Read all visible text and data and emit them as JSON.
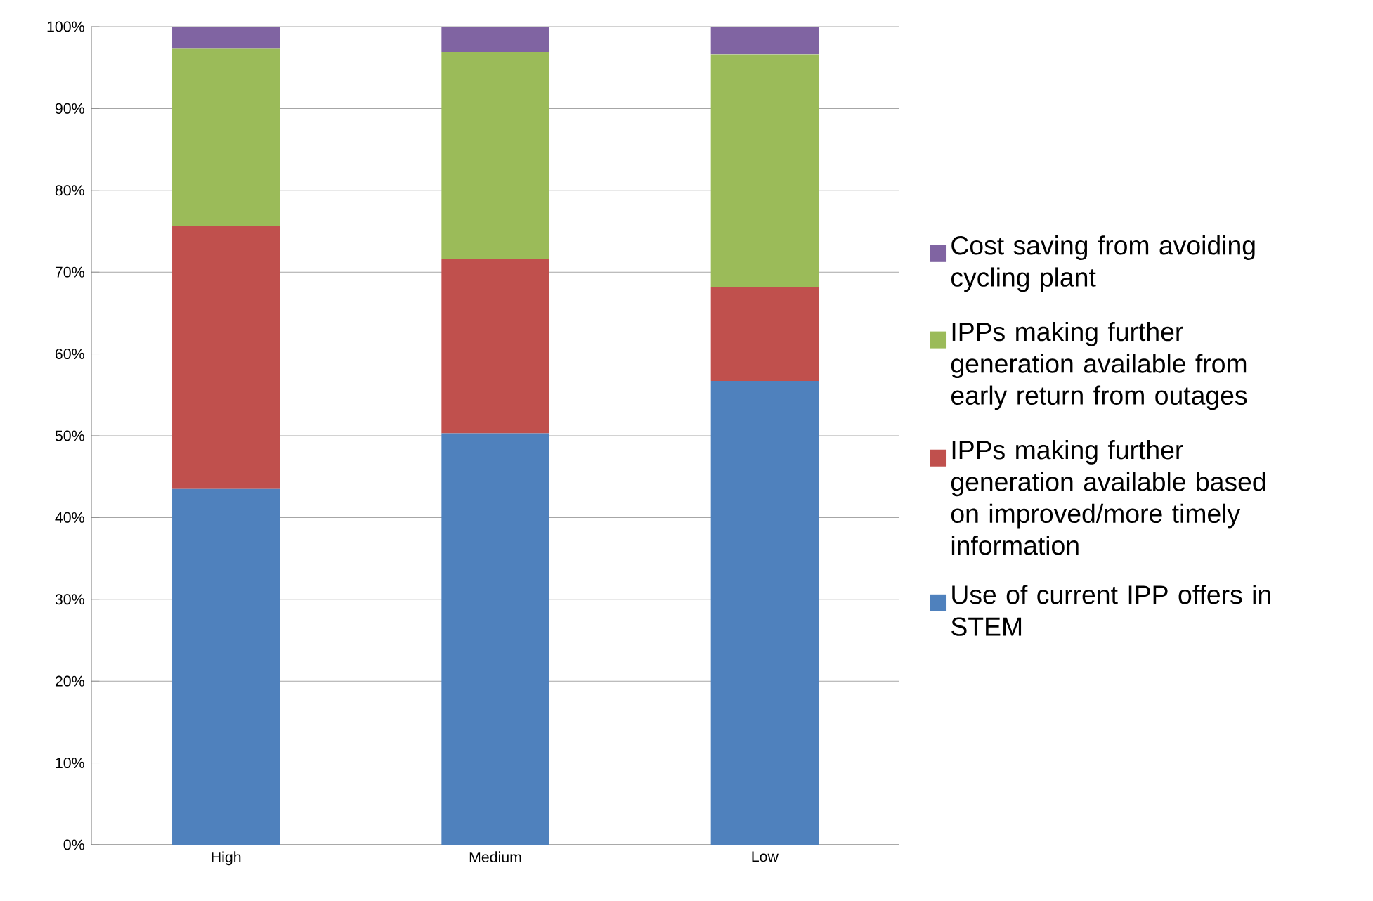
{
  "chart_data": {
    "type": "bar",
    "stacked": true,
    "categories": [
      "High",
      "Medium",
      "Low"
    ],
    "series": [
      {
        "name": "Use of current IPP offers in STEM",
        "color": "#4f81bd",
        "values": [
          43.5,
          50.3,
          56.7
        ]
      },
      {
        "name": "IPPs making further generation available based on improved/more timely information",
        "color": "#c0504d",
        "values": [
          32.1,
          21.3,
          11.5
        ]
      },
      {
        "name": "IPPs making further generation available from early return from outages",
        "color": "#9bbb59",
        "values": [
          21.7,
          25.3,
          28.4
        ]
      },
      {
        "name": "Cost saving from avoiding cycling plant",
        "color": "#8064a2",
        "values": [
          2.7,
          3.1,
          3.4
        ]
      }
    ],
    "ylim": [
      0,
      100
    ],
    "yticks": [
      {
        "value": 0,
        "label": "0%"
      },
      {
        "value": 10,
        "label": "10%"
      },
      {
        "value": 20,
        "label": "20%"
      },
      {
        "value": 30,
        "label": "30%"
      },
      {
        "value": 40,
        "label": "40%"
      },
      {
        "value": 50,
        "label": "50%"
      },
      {
        "value": 60,
        "label": "60%"
      },
      {
        "value": 70,
        "label": "70%"
      },
      {
        "value": 80,
        "label": "80%"
      },
      {
        "value": 90,
        "label": "90%"
      },
      {
        "value": 100,
        "label": "100%"
      }
    ],
    "grid": "y",
    "legend": "right"
  }
}
